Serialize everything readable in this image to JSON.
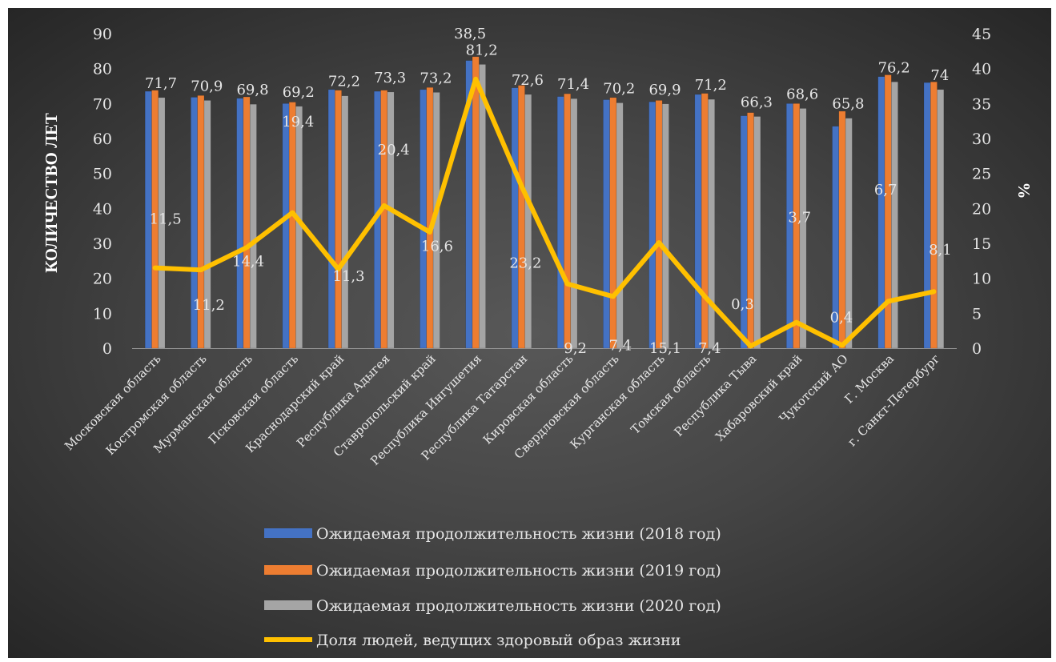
{
  "chart_data": {
    "type": "bar",
    "categories": [
      "Московская область",
      "Костромская область",
      "Мурманская область",
      "Псковская область",
      "Краснодарский край",
      "Республика Адыгея",
      "Ставропольский край",
      "Республика Ингушетия",
      "Республика Татарстан",
      "Кировская область",
      "Свердловская область",
      "Курганская область",
      "Томская область",
      "Республика Тыва",
      "Хабаровский край",
      "Чукотский АО",
      "Г. Москва",
      "г. Санкт-Петербург"
    ],
    "series": [
      {
        "name": "Ожидаемая продолжительность жизни (2018 год)",
        "kind": "bar",
        "axis": "left",
        "color": "#4472c4",
        "values": [
          73.5,
          71.8,
          71.5,
          70.0,
          74.0,
          73.5,
          74.0,
          82.3,
          74.5,
          72.0,
          71.1,
          70.5,
          72.6,
          66.5,
          70.0,
          63.5,
          77.7,
          76.0
        ]
      },
      {
        "name": "Ожидаемая продолжительность жизни (2019 год)",
        "kind": "bar",
        "axis": "left",
        "color": "#ed7d31",
        "values": [
          73.8,
          72.3,
          71.9,
          70.4,
          73.8,
          73.8,
          74.6,
          83.4,
          75.2,
          72.8,
          71.7,
          70.9,
          72.9,
          67.4,
          70.0,
          67.8,
          78.2,
          76.2
        ]
      },
      {
        "name": "Ожидаемая продолжительность жизни (2020 год)",
        "kind": "bar",
        "axis": "left",
        "color": "#a5a5a5",
        "values": [
          71.7,
          70.9,
          69.8,
          69.2,
          72.2,
          73.3,
          73.2,
          81.2,
          72.6,
          71.4,
          70.2,
          69.9,
          71.2,
          66.3,
          68.6,
          65.8,
          76.2,
          74
        ]
      },
      {
        "name": "Доля людей, ведущих здоровый образ жизни",
        "kind": "line",
        "axis": "right",
        "color": "#ffc000",
        "values": [
          11.5,
          11.2,
          14.4,
          19.4,
          11.3,
          20.4,
          16.6,
          38.5,
          23.2,
          9.2,
          7.4,
          15.1,
          7.4,
          0.3,
          3.7,
          0.4,
          6.7,
          8.1
        ]
      }
    ],
    "bar_labels": [
      "71,7",
      "70,9",
      "69,8",
      "69,2",
      "72,2",
      "73,3",
      "73,2",
      "81,2",
      "72,6",
      "71,4",
      "70,2",
      "69,9",
      "71,2",
      "66,3",
      "68,6",
      "65,8",
      "76,2",
      "74"
    ],
    "line_labels": [
      "11,5",
      "11,2",
      "14,4",
      "19,4",
      "11,3",
      "20,4",
      "16,6",
      "38,5",
      "23,2",
      "9,2",
      "7,4",
      "15,1",
      "7,4",
      "0,3",
      "3,7",
      "0,4",
      "6,7",
      "8,1"
    ],
    "ylabel": "КОЛИЧЕСТВО ЛЕТ",
    "y2label": "%",
    "ylim": [
      0,
      90
    ],
    "y2lim": [
      0,
      45
    ],
    "yticks": [
      "0",
      "10",
      "20",
      "30",
      "40",
      "50",
      "60",
      "70",
      "80",
      "90"
    ],
    "y2ticks": [
      "0",
      "5",
      "10",
      "15",
      "20",
      "25",
      "30",
      "35",
      "40",
      "45"
    ],
    "grid": false,
    "legend_position": "bottom"
  }
}
